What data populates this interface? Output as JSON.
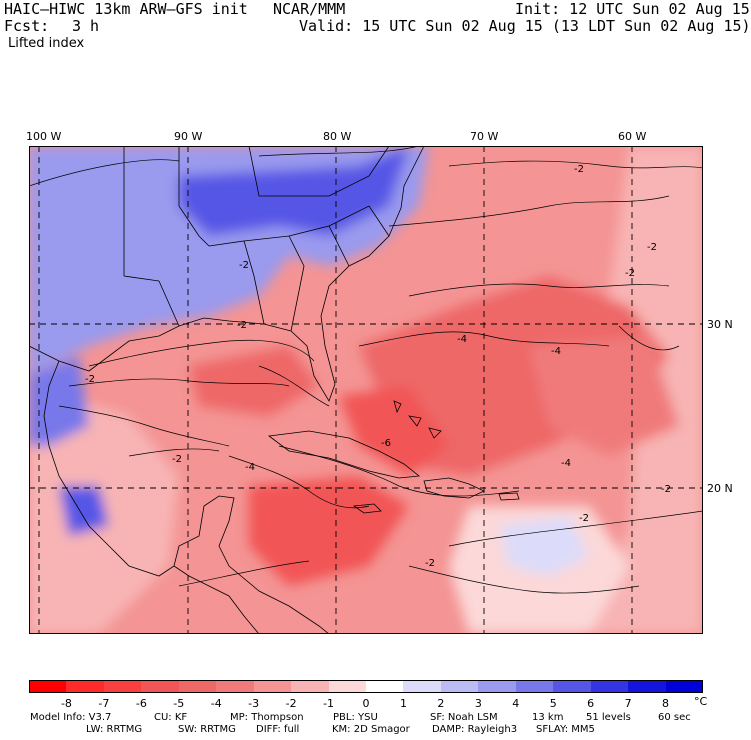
{
  "header": {
    "model_line": "HAIC–HIWC 13km ARW–GFS init",
    "org": "NCAR/MMM",
    "init": "Init: 12 UTC Sun 02 Aug 15",
    "fcst_label": "Fcst:",
    "fcst_value": "3 h",
    "valid": "Valid: 15 UTC Sun 02 Aug 15 (13 LDT Sun 02 Aug 15)",
    "field": "Lifted index"
  },
  "map": {
    "lon_labels": [
      "100 W",
      "90 W",
      "80 W",
      "70 W",
      "60 W"
    ],
    "lat_labels": [
      "30 N",
      "20 N"
    ],
    "contour_labels": [
      "-2",
      "-4",
      "-6"
    ],
    "colors": {
      "neg8": "#ff1a1a",
      "neg6": "#f24d4d",
      "neg4": "#f26e6e",
      "neg2": "#f7a0a0",
      "zero": "#ffffff",
      "pos2": "#c8c8f5",
      "pos4": "#8c8cee",
      "pos6": "#5a5af0",
      "pos8": "#1a1ae6",
      "land_line": "#000000"
    }
  },
  "colorbar": {
    "labels": [
      "-8",
      "-7",
      "-6",
      "-5",
      "-4",
      "-3",
      "-2",
      "-1",
      "0",
      "1",
      "2",
      "3",
      "4",
      "5",
      "6",
      "7",
      "8"
    ],
    "unit": "°C",
    "colors": [
      "#ff0000",
      "#ff2a2a",
      "#f84040",
      "#f25555",
      "#ee6868",
      "#f07a7a",
      "#f49494",
      "#f8b4b4",
      "#fcd8d8",
      "#ffffff",
      "#dcdcfa",
      "#bcbcf4",
      "#9a9aee",
      "#7878ea",
      "#5656e6",
      "#3434e2",
      "#1414dc",
      "#0000d8"
    ]
  },
  "footer": {
    "line1_a": "Model Info: V3.7",
    "line1_b": "CU: KF",
    "line1_c": "MP: Thompson",
    "line1_d": "PBL: YSU",
    "line1_e": "SF: Noah LSM",
    "line1_f": "13 km",
    "line1_g": "51 levels",
    "line1_h": "60 sec",
    "line2_a": "LW: RRTMG",
    "line2_b": "SW: RRTMG",
    "line2_c": "DIFF: full",
    "line2_d": "KM: 2D Smagor",
    "line2_e": "DAMP: Rayleigh3",
    "line2_f": "SFLAY: MM5"
  }
}
